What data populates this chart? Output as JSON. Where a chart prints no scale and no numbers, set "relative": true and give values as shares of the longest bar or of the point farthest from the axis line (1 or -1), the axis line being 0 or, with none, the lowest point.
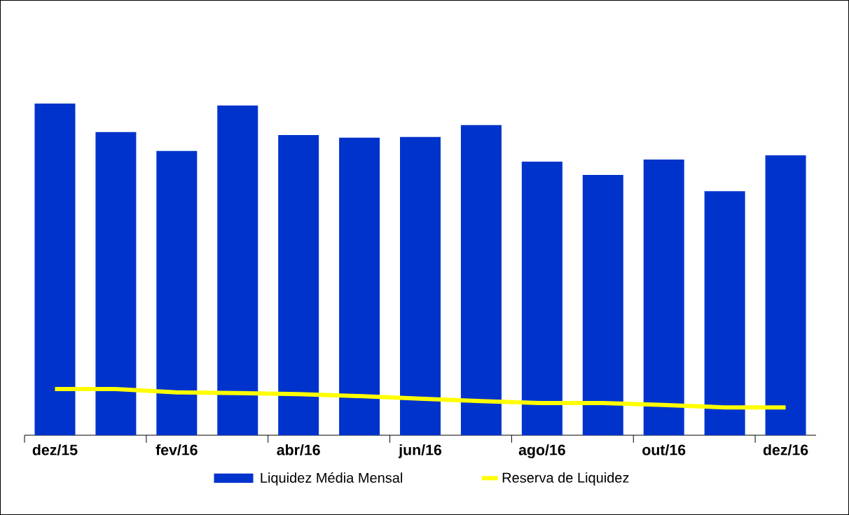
{
  "chart_data": {
    "type": "bar",
    "relative": true,
    "categories": [
      "dez/15",
      null,
      "fev/16",
      null,
      "abr/16",
      null,
      "jun/16",
      null,
      "ago/16",
      null,
      "out/16",
      null,
      "dez/16"
    ],
    "series": [
      {
        "name": "Liquidez Média Mensal",
        "color": "#0033cc",
        "values": [
          1,
          0.914,
          0.857,
          0.994,
          0.905,
          0.897,
          0.899,
          0.935,
          0.825,
          0.785,
          0.831,
          0.736,
          0.844
        ]
      },
      {
        "name": "Reserva de Liquidez",
        "type": "line",
        "color": "#ffff00",
        "values": [
          0.139,
          0.139,
          0.129,
          0.127,
          0.124,
          0.118,
          0.11,
          0.103,
          0.097,
          0.097,
          0.091,
          0.084,
          0.084
        ]
      }
    ],
    "legend": "bottom",
    "grid": false
  }
}
